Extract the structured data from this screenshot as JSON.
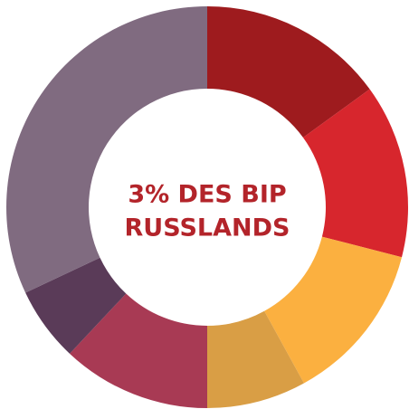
{
  "chart_data": {
    "type": "donut",
    "title": [
      "3% DES BIP",
      "RUSSLANDS"
    ],
    "values": [
      15,
      14,
      13,
      8,
      12,
      6,
      32
    ],
    "colors": [
      "#9e1b1e",
      "#d7262d",
      "#fbb040",
      "#d99e45",
      "#a83a54",
      "#5a3b58",
      "#806b80"
    ],
    "title_color": "#b3242a"
  }
}
